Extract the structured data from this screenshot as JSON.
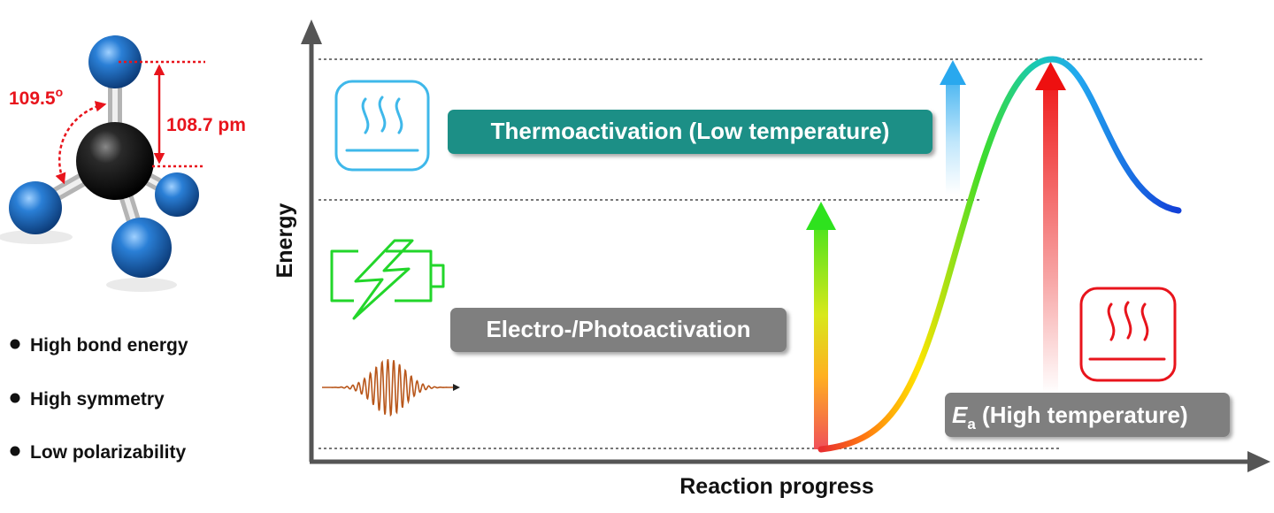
{
  "molecule": {
    "angle_label": "109.5",
    "angle_unit": "o",
    "bond_length_label": "108.7 pm"
  },
  "properties": [
    "High bond energy",
    "High symmetry",
    "Low polarizability"
  ],
  "axes": {
    "ylabel": "Energy",
    "xlabel": "Reaction progress"
  },
  "labels": {
    "thermo": "Thermoactivation (Low temperature)",
    "electro": "Electro-/Photoactivation",
    "ea_symbol": "E",
    "ea_subscript": "a",
    "ea_rest": " (High temperature)"
  },
  "colors": {
    "annotation_red": "#e8141c",
    "label_teal": "#1f8f86",
    "label_gray": "#7f7f7f",
    "battery_green": "#22d62a",
    "heater_cyan": "#3fb8ea",
    "heater_red": "#e8141c",
    "wave_orange": "#b8561a"
  },
  "icons": [
    "heater-low-icon",
    "battery-bolt-icon",
    "light-wave-icon",
    "heater-high-icon",
    "methane-molecule-icon"
  ]
}
